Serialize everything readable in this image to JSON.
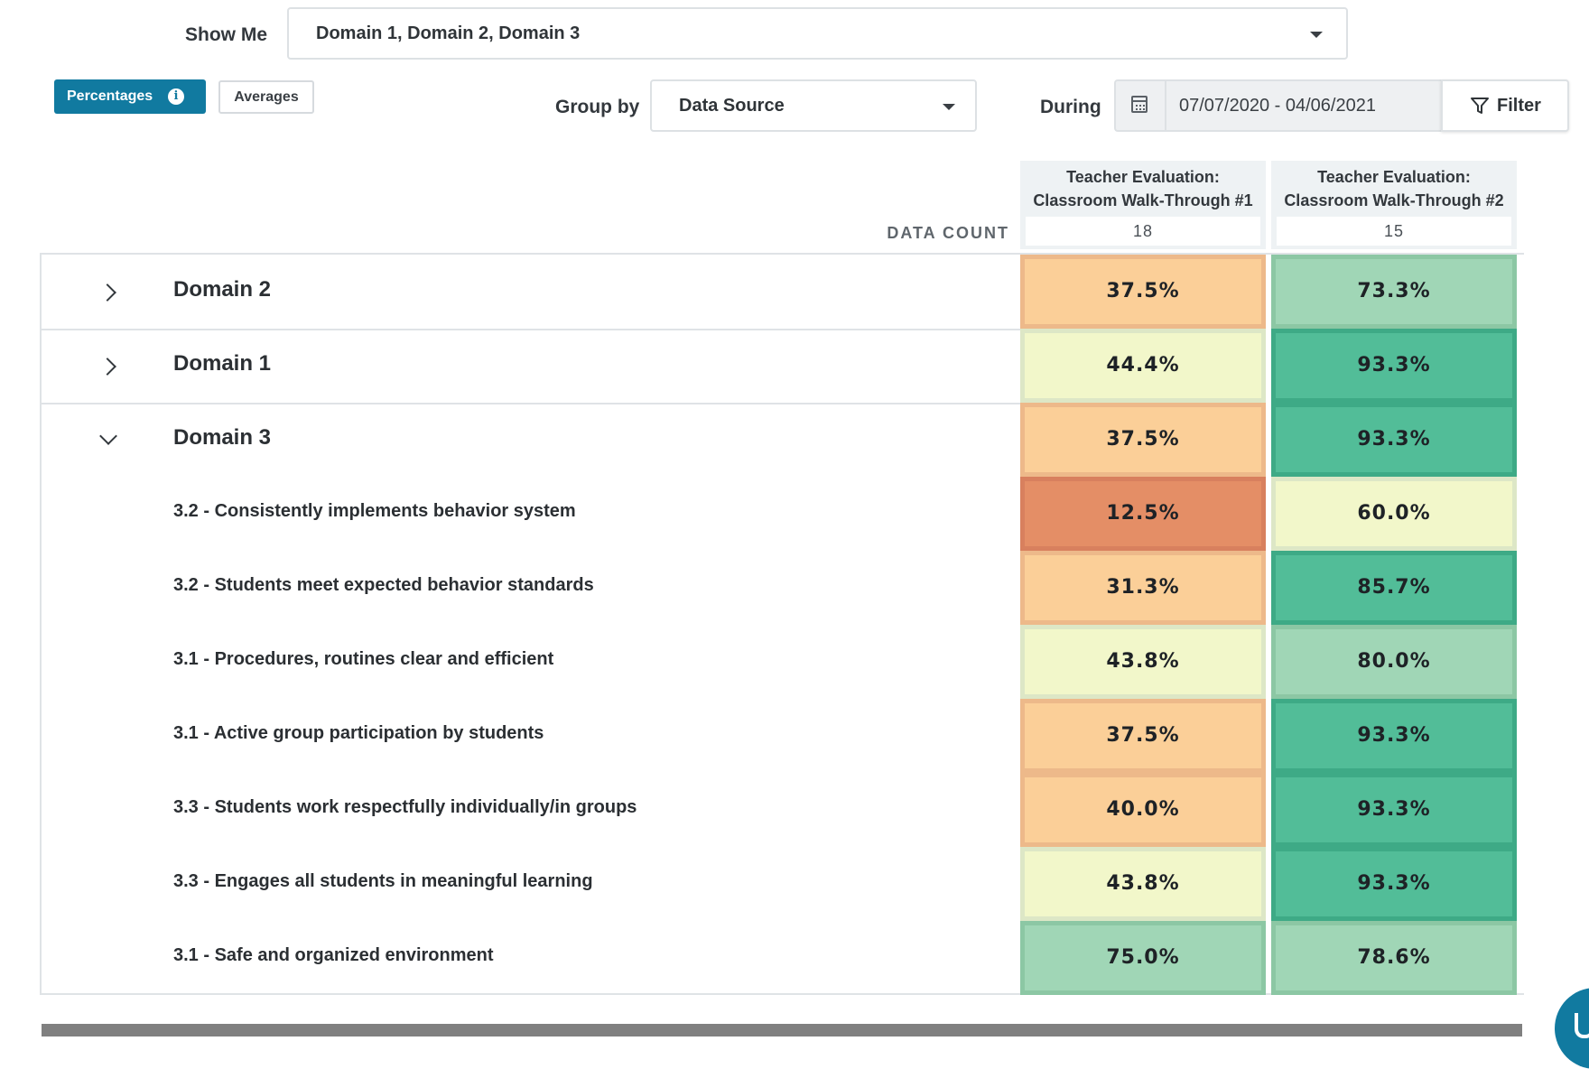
{
  "filters": {
    "show_me_label": "Show Me",
    "show_me_value": "Domain 1, Domain 2, Domain 3",
    "percentages_label": "Percentages",
    "averages_label": "Averages",
    "group_by_label": "Group by",
    "group_by_value": "Data Source",
    "during_label": "During",
    "date_range": "07/07/2020 - 04/06/2021",
    "filter_label": "Filter"
  },
  "table": {
    "data_count_label": "DATA COUNT",
    "columns": [
      {
        "line1": "Teacher Evaluation:",
        "line2": "Classroom Walk-Through #1",
        "count": "18"
      },
      {
        "line1": "Teacher Evaluation:",
        "line2": "Classroom Walk-Through #2",
        "count": "15"
      }
    ],
    "rows": [
      {
        "label": "Domain 2",
        "type": "domain",
        "expanded": false,
        "values": [
          "37.5%",
          "73.3%"
        ],
        "colors": [
          "#fbcf98",
          "#a0d6b6"
        ]
      },
      {
        "label": "Domain 1",
        "type": "domain",
        "expanded": false,
        "values": [
          "44.4%",
          "93.3%"
        ],
        "colors": [
          "#f2f7ca",
          "#52bd98"
        ]
      },
      {
        "label": "Domain 3",
        "type": "domain",
        "expanded": true,
        "values": [
          "37.5%",
          "93.3%"
        ],
        "colors": [
          "#fbcf98",
          "#52bd98"
        ]
      },
      {
        "label": "3.2 - Consistently implements behavior system",
        "type": "item",
        "values": [
          "12.5%",
          "60.0%"
        ],
        "colors": [
          "#e48e66",
          "#f2f7ca"
        ]
      },
      {
        "label": "3.2 - Students meet expected behavior standards",
        "type": "item",
        "values": [
          "31.3%",
          "85.7%"
        ],
        "colors": [
          "#fbcf98",
          "#52bd98"
        ]
      },
      {
        "label": "3.1 - Procedures, routines clear and efficient",
        "type": "item",
        "values": [
          "43.8%",
          "80.0%"
        ],
        "colors": [
          "#f2f7ca",
          "#a0d6b6"
        ]
      },
      {
        "label": "3.1 - Active group participation by students",
        "type": "item",
        "values": [
          "37.5%",
          "93.3%"
        ],
        "colors": [
          "#fbcf98",
          "#52bd98"
        ]
      },
      {
        "label": "3.3 - Students work respectfully individually/in groups",
        "type": "item",
        "values": [
          "40.0%",
          "93.3%"
        ],
        "colors": [
          "#fbcf98",
          "#52bd98"
        ]
      },
      {
        "label": "3.3 - Engages all students in meaningful learning",
        "type": "item",
        "values": [
          "43.8%",
          "93.3%"
        ],
        "colors": [
          "#f2f7ca",
          "#52bd98"
        ]
      },
      {
        "label": "3.1 - Safe and organized environment",
        "type": "item",
        "values": [
          "75.0%",
          "78.6%"
        ],
        "colors": [
          "#a0d6b6",
          "#a0d6b6"
        ]
      }
    ]
  },
  "icons": {
    "info": "info-icon",
    "calendar": "calendar-icon",
    "filter": "funnel-icon",
    "chevron_right": "chevron-right-icon",
    "chevron_down": "chevron-down-icon",
    "chat": "chat-icon"
  },
  "colors": {
    "accent": "#117aa0",
    "low": "#e48e66",
    "below": "#fbcf98",
    "mid": "#f2f7ca",
    "good": "#a0d6b6",
    "high": "#52bd98"
  }
}
